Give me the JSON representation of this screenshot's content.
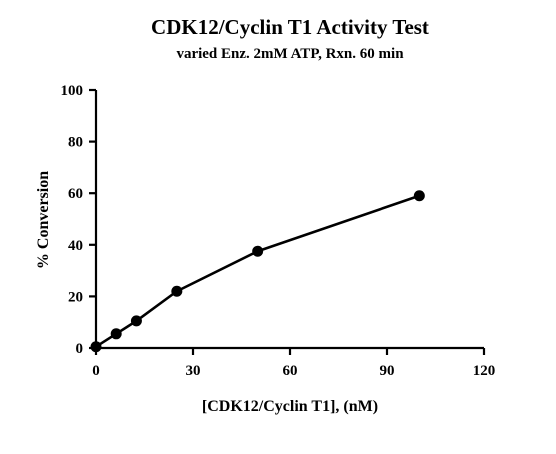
{
  "chart_data": {
    "type": "line",
    "title": "CDK12/Cyclin T1 Activity Test",
    "subtitle": "varied Enz. 2mM ATP, Rxn. 60 min",
    "xlabel": "[CDK12/Cyclin T1], (nM)",
    "ylabel": "% Conversion",
    "xlim": [
      0,
      120
    ],
    "ylim": [
      0,
      100
    ],
    "xticks": [
      0,
      30,
      60,
      90,
      120
    ],
    "yticks": [
      0,
      20,
      40,
      60,
      80,
      100
    ],
    "grid": false,
    "legend": "none",
    "series": [
      {
        "x": [
          0,
          6.25,
          12.5,
          25,
          50,
          100
        ],
        "y": [
          0.5,
          5.5,
          10.5,
          22,
          37.5,
          59
        ],
        "color": "#000000",
        "marker": "circle"
      }
    ]
  }
}
